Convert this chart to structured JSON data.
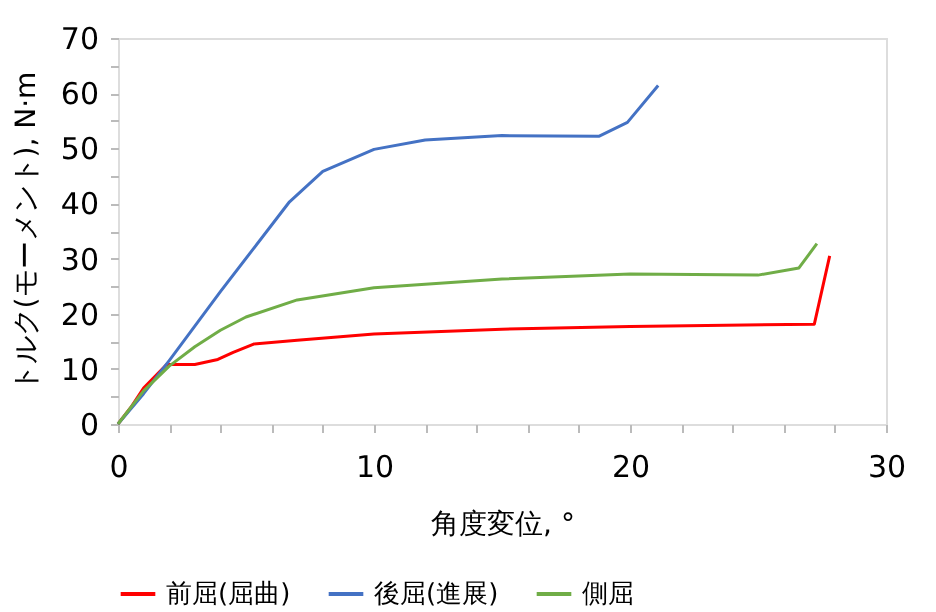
{
  "chart_data": {
    "type": "line",
    "xlabel": "角度変位, °",
    "ylabel": "トルク(モーメント), N·m",
    "xlim": [
      0,
      30
    ],
    "ylim": [
      0,
      70
    ],
    "xticks": [
      0,
      {
        "value": 2,
        "label": null
      },
      {
        "value": 4,
        "label": null
      },
      {
        "value": 6,
        "label": null
      },
      {
        "value": 8,
        "label": null
      },
      10,
      {
        "value": 12,
        "label": null
      },
      {
        "value": 14,
        "label": null
      },
      {
        "value": 16,
        "label": null
      },
      {
        "value": 18,
        "label": null
      },
      20,
      {
        "value": 22,
        "label": null
      },
      {
        "value": 24,
        "label": null
      },
      {
        "value": 26,
        "label": null
      },
      {
        "value": 28,
        "label": null
      },
      30
    ],
    "yticks": [
      0,
      {
        "value": 5,
        "label": null
      },
      10,
      {
        "value": 15,
        "label": null
      },
      20,
      {
        "value": 25,
        "label": null
      },
      30,
      {
        "value": 35,
        "label": null
      },
      40,
      {
        "value": 45,
        "label": null
      },
      50,
      {
        "value": 55,
        "label": null
      },
      60,
      {
        "value": 65,
        "label": null
      },
      70
    ],
    "grid": false,
    "legend": "bottom",
    "series": [
      {
        "name": "前屈(屈曲)",
        "color": "#ff0000",
        "x": [
          0,
          0.5,
          1,
          1.9,
          3,
          3.9,
          4.5,
          5.3,
          7,
          10,
          15,
          20,
          27.2,
          27.8
        ],
        "values": [
          0,
          3,
          6.5,
          10.8,
          10.8,
          11.7,
          13,
          14.5,
          15.2,
          16.3,
          17.2,
          17.7,
          18.1,
          30.5
        ]
      },
      {
        "name": "後屈(進展)",
        "color": "#4472c4",
        "x": [
          0,
          1,
          2,
          4,
          6.7,
          8,
          10,
          12,
          15,
          18.8,
          19.9,
          21.1
        ],
        "values": [
          0,
          5.5,
          11.5,
          24,
          40.3,
          45.8,
          49.8,
          51.5,
          52.3,
          52.2,
          54.7,
          61.4
        ]
      },
      {
        "name": "側屈",
        "color": "#70ad47",
        "x": [
          0,
          1,
          2,
          3,
          4,
          5,
          7,
          10,
          15,
          20,
          25,
          26.6,
          27.3
        ],
        "values": [
          0,
          6,
          10.5,
          14,
          17,
          19.4,
          22.5,
          24.7,
          26.3,
          27.2,
          27,
          28.3,
          32.7
        ]
      }
    ]
  }
}
